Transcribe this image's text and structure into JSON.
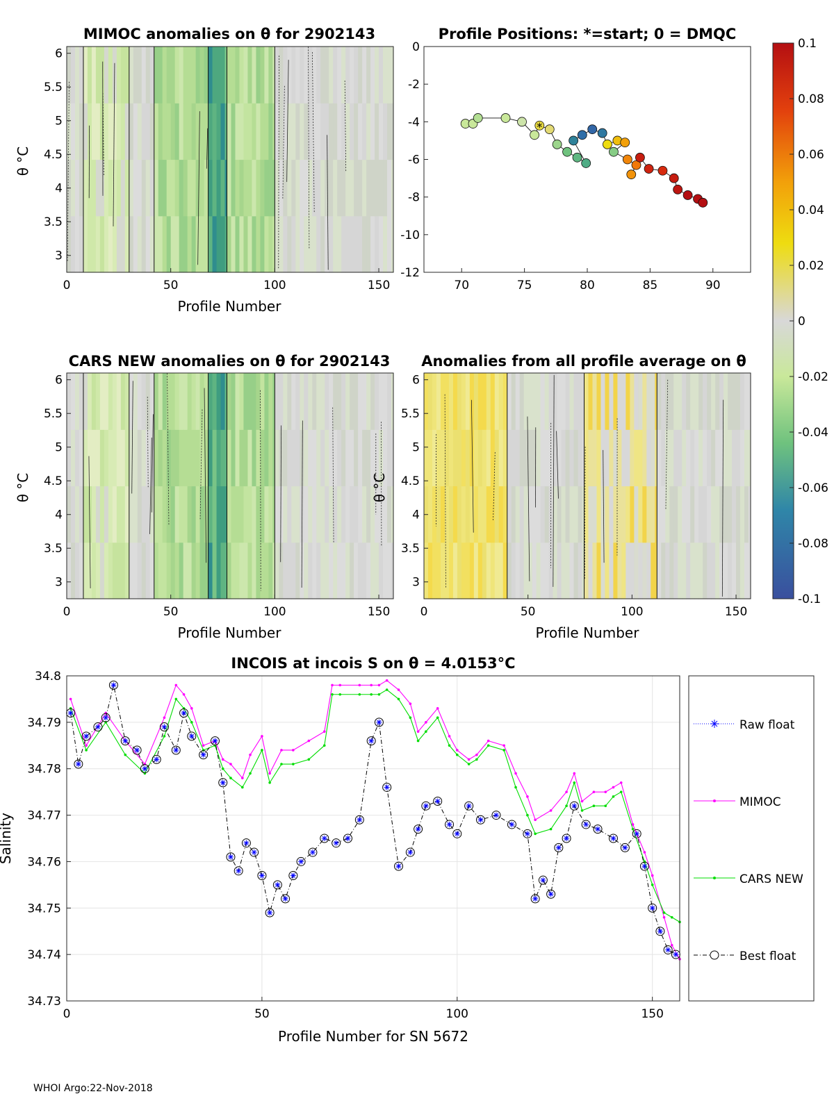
{
  "footer": "WHOI Argo:22-Nov-2018",
  "colorbar": {
    "ticks": [
      0.1,
      0.08,
      0.06,
      0.04,
      0.02,
      0,
      -0.02,
      -0.04,
      -0.06,
      -0.08,
      -0.1
    ],
    "tick_labels": [
      "0.1",
      "0.08",
      "0.06",
      "0.04",
      "0.02",
      "0",
      "-0.02",
      "-0.04",
      "-0.06",
      "-0.08",
      "-0.1"
    ],
    "colors": [
      "#b40f12",
      "#d72a0e",
      "#f06b0a",
      "#f2a30a",
      "#ecd90e",
      "#d8d8d8",
      "#c9e89a",
      "#96d68a",
      "#3faa7c",
      "#2f7fa8",
      "#3a5ca8"
    ]
  },
  "chart_data": [
    {
      "id": "mimoc",
      "type": "heatmap",
      "title": "MIMOC anomalies on θ  for 2902143",
      "xlabel": "Profile Number",
      "ylabel": "θ °C",
      "xlim": [
        0,
        157
      ],
      "ylim": [
        2.75,
        6.1
      ],
      "xticks": [
        "0",
        "50",
        "100",
        "150"
      ],
      "yticks": [
        "3",
        "3.5",
        "4",
        "4.5",
        "5",
        "5.5",
        "6"
      ],
      "segments": [
        {
          "from": 0,
          "to": 8,
          "level": "gray"
        },
        {
          "from": 8,
          "to": 30,
          "level": "light-green"
        },
        {
          "from": 30,
          "to": 42,
          "level": "gray"
        },
        {
          "from": 42,
          "to": 68,
          "level": "green"
        },
        {
          "from": 68,
          "to": 77,
          "level": "dark-green"
        },
        {
          "from": 77,
          "to": 100,
          "level": "green"
        },
        {
          "from": 100,
          "to": 157,
          "level": "gray"
        }
      ]
    },
    {
      "id": "positions",
      "type": "scatter",
      "title": "Profile Positions: *=start; 0 = DMQC",
      "xlim": [
        67,
        93
      ],
      "ylim": [
        -12,
        0
      ],
      "xticks": [
        "70",
        "75",
        "80",
        "85",
        "90"
      ],
      "yticks": [
        "0",
        "-2",
        "-4",
        "-6",
        "-8",
        "-10",
        "-12"
      ],
      "start_marker": "*",
      "points": [
        {
          "x": 70.3,
          "y": -4.1,
          "v": -0.02
        },
        {
          "x": 70.9,
          "y": -4.1,
          "v": -0.02
        },
        {
          "x": 71.3,
          "y": -3.8,
          "v": -0.025
        },
        {
          "x": 73.5,
          "y": -3.8,
          "v": -0.02
        },
        {
          "x": 74.8,
          "y": -4.0,
          "v": -0.015
        },
        {
          "x": 75.8,
          "y": -4.7,
          "v": -0.02
        },
        {
          "x": 76.2,
          "y": -4.2,
          "v": 0.015
        },
        {
          "x": 77.0,
          "y": -4.4,
          "v": 0.01
        },
        {
          "x": 77.6,
          "y": -5.2,
          "v": -0.03
        },
        {
          "x": 78.4,
          "y": -5.6,
          "v": -0.04
        },
        {
          "x": 79.2,
          "y": -5.9,
          "v": -0.045
        },
        {
          "x": 79.9,
          "y": -6.2,
          "v": -0.05
        },
        {
          "x": 78.9,
          "y": -5.0,
          "v": -0.07
        },
        {
          "x": 79.6,
          "y": -4.7,
          "v": -0.08
        },
        {
          "x": 80.4,
          "y": -4.4,
          "v": -0.085
        },
        {
          "x": 81.2,
          "y": -4.6,
          "v": -0.075
        },
        {
          "x": 81.6,
          "y": -5.2,
          "v": 0.02
        },
        {
          "x": 82.4,
          "y": -5.0,
          "v": 0.03
        },
        {
          "x": 83.0,
          "y": -5.1,
          "v": 0.04
        },
        {
          "x": 82.1,
          "y": -5.6,
          "v": -0.035
        },
        {
          "x": 83.2,
          "y": -6.0,
          "v": 0.05
        },
        {
          "x": 83.9,
          "y": -6.3,
          "v": 0.055
        },
        {
          "x": 83.5,
          "y": -6.8,
          "v": 0.045
        },
        {
          "x": 84.2,
          "y": -5.9,
          "v": 0.09
        },
        {
          "x": 84.9,
          "y": -6.5,
          "v": 0.085
        },
        {
          "x": 86.0,
          "y": -6.6,
          "v": 0.08
        },
        {
          "x": 86.9,
          "y": -7.0,
          "v": 0.09
        },
        {
          "x": 87.2,
          "y": -7.6,
          "v": 0.095
        },
        {
          "x": 88.0,
          "y": -7.9,
          "v": 0.1
        },
        {
          "x": 88.8,
          "y": -8.1,
          "v": 0.1
        },
        {
          "x": 89.2,
          "y": -8.3,
          "v": 0.1
        }
      ]
    },
    {
      "id": "cars",
      "type": "heatmap",
      "title": "CARS NEW anomalies on θ for 2902143",
      "xlabel": "Profile Number",
      "ylabel": "θ °C",
      "xlim": [
        0,
        157
      ],
      "ylim": [
        2.75,
        6.1
      ],
      "xticks": [
        "0",
        "50",
        "100",
        "150"
      ],
      "yticks": [
        "3",
        "3.5",
        "4",
        "4.5",
        "5",
        "5.5",
        "6"
      ],
      "segments": [
        {
          "from": 0,
          "to": 8,
          "level": "gray"
        },
        {
          "from": 8,
          "to": 30,
          "level": "light-green"
        },
        {
          "from": 30,
          "to": 42,
          "level": "gray"
        },
        {
          "from": 42,
          "to": 68,
          "level": "green"
        },
        {
          "from": 68,
          "to": 77,
          "level": "dark-green"
        },
        {
          "from": 77,
          "to": 100,
          "level": "green"
        },
        {
          "from": 100,
          "to": 157,
          "level": "gray"
        }
      ]
    },
    {
      "id": "avg",
      "type": "heatmap",
      "title": "Anomalies from all profile average on θ",
      "xlabel": "Profile Number",
      "ylabel": "θ °C",
      "xlim": [
        0,
        157
      ],
      "ylim": [
        2.75,
        6.1
      ],
      "xticks": [
        "0",
        "50",
        "100",
        "150"
      ],
      "yticks": [
        "3",
        "3.5",
        "4",
        "4.5",
        "5",
        "5.5",
        "6"
      ],
      "segments": [
        {
          "from": 0,
          "to": 40,
          "level": "yellow"
        },
        {
          "from": 40,
          "to": 77,
          "level": "gray"
        },
        {
          "from": 77,
          "to": 112,
          "level": "light-yellow"
        },
        {
          "from": 112,
          "to": 157,
          "level": "gray"
        }
      ]
    },
    {
      "id": "salinity",
      "type": "line",
      "title": "INCOIS at incois S on θ = 4.0153°C",
      "xlabel": "Profile Number for SN 5672",
      "ylabel": "Salinity",
      "xlim": [
        0,
        157
      ],
      "ylim": [
        34.73,
        34.8
      ],
      "xticks": [
        "0",
        "50",
        "100",
        "150"
      ],
      "yticks": [
        "34.73",
        "34.74",
        "34.75",
        "34.76",
        "34.77",
        "34.78",
        "34.79",
        "34.8"
      ],
      "legend": [
        "Raw float",
        "MIMOC",
        "CARS NEW",
        "Best float"
      ],
      "series": [
        {
          "name": "MIMOC",
          "color": "#ff00ff",
          "x": [
            1,
            5,
            10,
            15,
            20,
            25,
            28,
            30,
            32,
            35,
            38,
            40,
            42,
            45,
            47,
            50,
            52,
            55,
            58,
            62,
            66,
            68,
            70,
            75,
            78,
            80,
            82,
            85,
            88,
            90,
            92,
            95,
            98,
            100,
            103,
            105,
            108,
            112,
            115,
            118,
            120,
            124,
            128,
            130,
            132,
            135,
            138,
            140,
            142,
            145,
            148,
            150,
            153,
            155,
            157
          ],
          "values": [
            34.795,
            34.785,
            34.792,
            34.786,
            34.781,
            34.791,
            34.798,
            34.796,
            34.793,
            34.785,
            34.786,
            34.782,
            34.781,
            34.778,
            34.783,
            34.787,
            34.779,
            34.784,
            34.784,
            34.786,
            34.788,
            34.798,
            34.798,
            34.798,
            34.798,
            34.798,
            34.799,
            34.797,
            34.794,
            34.788,
            34.79,
            34.793,
            34.787,
            34.784,
            34.782,
            34.783,
            34.786,
            34.785,
            34.779,
            34.774,
            34.769,
            34.771,
            34.775,
            34.779,
            34.773,
            34.775,
            34.775,
            34.776,
            34.777,
            34.768,
            34.762,
            34.757,
            34.748,
            34.742,
            34.739
          ]
        },
        {
          "name": "CARS NEW",
          "color": "#00dd00",
          "x": [
            1,
            5,
            10,
            15,
            20,
            25,
            28,
            30,
            32,
            35,
            38,
            40,
            42,
            45,
            47,
            50,
            52,
            55,
            58,
            62,
            66,
            68,
            70,
            75,
            78,
            80,
            82,
            85,
            88,
            90,
            92,
            95,
            98,
            100,
            103,
            105,
            108,
            112,
            115,
            118,
            120,
            124,
            128,
            130,
            132,
            135,
            138,
            140,
            142,
            145,
            148,
            150,
            153,
            155,
            157
          ],
          "values": [
            34.793,
            34.784,
            34.79,
            34.783,
            34.779,
            34.787,
            34.795,
            34.793,
            34.79,
            34.784,
            34.785,
            34.78,
            34.778,
            34.776,
            34.779,
            34.784,
            34.777,
            34.781,
            34.781,
            34.782,
            34.785,
            34.796,
            34.796,
            34.796,
            34.796,
            34.796,
            34.797,
            34.795,
            34.791,
            34.786,
            34.788,
            34.791,
            34.785,
            34.783,
            34.781,
            34.782,
            34.785,
            34.784,
            34.776,
            34.77,
            34.766,
            34.767,
            34.772,
            34.777,
            34.771,
            34.772,
            34.772,
            34.774,
            34.775,
            34.767,
            34.76,
            34.755,
            34.749,
            34.748,
            34.747
          ]
        },
        {
          "name": "Best float",
          "color": "#000000",
          "x": [
            1,
            3,
            5,
            8,
            10,
            12,
            15,
            18,
            20,
            23,
            25,
            28,
            30,
            32,
            35,
            38,
            40,
            42,
            44,
            46,
            48,
            50,
            52,
            54,
            56,
            58,
            60,
            63,
            66,
            69,
            72,
            75,
            78,
            80,
            82,
            85,
            88,
            90,
            92,
            95,
            98,
            100,
            103,
            106,
            110,
            114,
            118,
            120,
            122,
            124,
            126,
            128,
            130,
            133,
            136,
            140,
            143,
            146,
            148,
            150,
            152,
            154,
            156
          ],
          "values": [
            34.792,
            34.781,
            34.787,
            34.789,
            34.791,
            34.798,
            34.786,
            34.784,
            34.78,
            34.782,
            34.789,
            34.784,
            34.792,
            34.787,
            34.783,
            34.786,
            34.777,
            34.761,
            34.758,
            34.764,
            34.762,
            34.757,
            34.749,
            34.755,
            34.752,
            34.757,
            34.76,
            34.762,
            34.765,
            34.764,
            34.765,
            34.769,
            34.786,
            34.79,
            34.776,
            34.759,
            34.762,
            34.767,
            34.772,
            34.773,
            34.768,
            34.766,
            34.772,
            34.769,
            34.77,
            34.768,
            34.766,
            34.752,
            34.756,
            34.753,
            34.763,
            34.765,
            34.772,
            34.768,
            34.767,
            34.765,
            34.763,
            34.766,
            34.759,
            34.75,
            34.745,
            34.741,
            34.74
          ]
        },
        {
          "name": "Raw float",
          "color": "#0000ff",
          "x": [
            1,
            3,
            5,
            8,
            10,
            12,
            15,
            18,
            20,
            23,
            25,
            28,
            30,
            32,
            35,
            38,
            40,
            42,
            44,
            46,
            48,
            50,
            52,
            54,
            56,
            58,
            60,
            63,
            66,
            69,
            72,
            75,
            78,
            80,
            82,
            85,
            88,
            90,
            92,
            95,
            98,
            100,
            103,
            106,
            110,
            114,
            118,
            120,
            122,
            124,
            126,
            128,
            130,
            133,
            136,
            140,
            143,
            146,
            148,
            150,
            152,
            154,
            156
          ],
          "values": [
            34.792,
            34.781,
            34.787,
            34.789,
            34.791,
            34.798,
            34.786,
            34.784,
            34.78,
            34.782,
            34.789,
            34.784,
            34.792,
            34.787,
            34.783,
            34.786,
            34.777,
            34.761,
            34.758,
            34.764,
            34.762,
            34.757,
            34.749,
            34.755,
            34.752,
            34.757,
            34.76,
            34.762,
            34.765,
            34.764,
            34.765,
            34.769,
            34.786,
            34.79,
            34.776,
            34.759,
            34.762,
            34.767,
            34.772,
            34.773,
            34.768,
            34.766,
            34.772,
            34.769,
            34.77,
            34.768,
            34.766,
            34.752,
            34.756,
            34.753,
            34.763,
            34.765,
            34.772,
            34.768,
            34.767,
            34.765,
            34.763,
            34.766,
            34.759,
            34.75,
            34.745,
            34.741,
            34.74
          ]
        }
      ]
    }
  ]
}
